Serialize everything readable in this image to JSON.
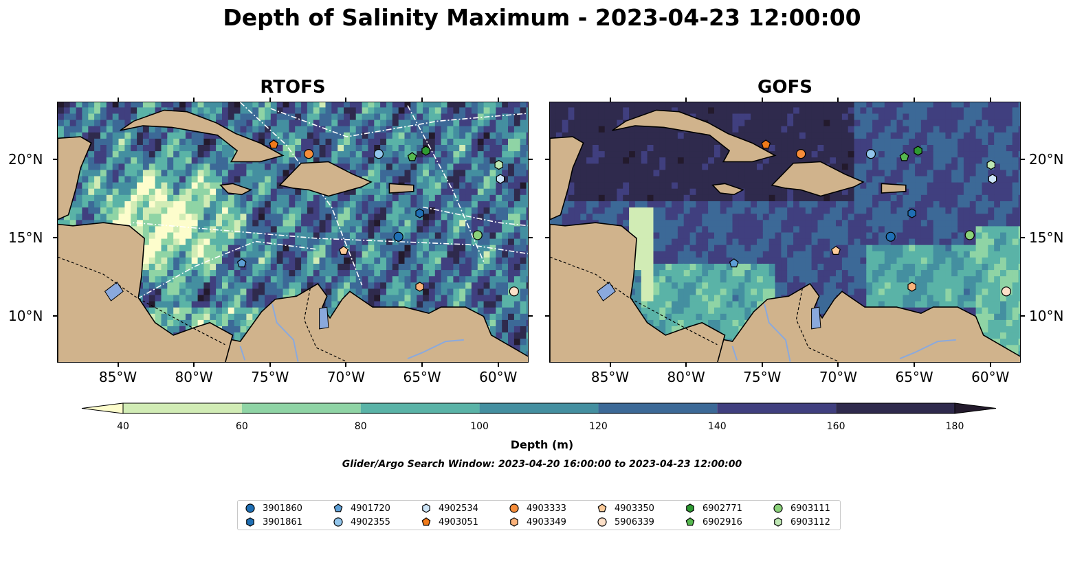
{
  "title": "Depth of Salinity Maximum - 2023-04-23 12:00:00",
  "chart_data": {
    "type": "heatmap",
    "panels": [
      {
        "title": "RTOFS"
      },
      {
        "title": "GOFS"
      }
    ],
    "x_ticks": [
      "85°W",
      "80°W",
      "75°W",
      "70°W",
      "65°W",
      "60°W"
    ],
    "x_tick_values": [
      -85,
      -80,
      -75,
      -70,
      -65,
      -60
    ],
    "y_ticks": [
      "10°N",
      "15°N",
      "20°N"
    ],
    "y_tick_values": [
      10,
      15,
      20
    ],
    "xlim": [
      -89,
      -58
    ],
    "ylim": [
      7,
      23.7
    ],
    "colorbar": {
      "label": "Depth (m)",
      "ticks": [
        "40",
        "60",
        "80",
        "100",
        "120",
        "140",
        "160",
        "180"
      ],
      "levels": [
        40,
        60,
        80,
        100,
        120,
        140,
        160,
        180
      ],
      "colors": [
        "#fdfdcc",
        "#d1ecb5",
        "#8fd4a5",
        "#5ab3a7",
        "#448fa0",
        "#3c6997",
        "#403f7f",
        "#2f2a4d",
        "#231a2c"
      ],
      "extend": "both"
    },
    "search_window": "Glider/Argo Search Window: 2023-04-20 16:00:00 to 2023-04-23 12:00:00",
    "floats": [
      {
        "id": "3901860",
        "color": "#1f6fb4",
        "marker": "circle",
        "lon": -66.6,
        "lat": 15.1
      },
      {
        "id": "3901861",
        "color": "#1f6fb4",
        "marker": "hexagon",
        "lon": -65.2,
        "lat": 16.6
      },
      {
        "id": "4901720",
        "color": "#5d9fd6",
        "marker": "pentagon",
        "lon": -76.9,
        "lat": 13.4
      },
      {
        "id": "4902355",
        "color": "#92c5eb",
        "marker": "circle",
        "lon": -67.9,
        "lat": 20.4
      },
      {
        "id": "4902534",
        "color": "#cce4f7",
        "marker": "hexagon",
        "lon": -59.9,
        "lat": 18.8
      },
      {
        "id": "4903051",
        "color": "#f07a1a",
        "marker": "pentagon",
        "lon": -74.8,
        "lat": 21.0
      },
      {
        "id": "4903333",
        "color": "#f68d3a",
        "marker": "circle",
        "lon": -72.5,
        "lat": 20.4
      },
      {
        "id": "4903349",
        "color": "#fbb27a",
        "marker": "hexagon",
        "lon": -65.2,
        "lat": 11.9
      },
      {
        "id": "4903350",
        "color": "#fccb9a",
        "marker": "pentagon",
        "lon": -70.2,
        "lat": 14.2
      },
      {
        "id": "5906339",
        "color": "#fde0c8",
        "marker": "circle",
        "lon": -59.0,
        "lat": 11.6
      },
      {
        "id": "6902771",
        "color": "#2e9a32",
        "marker": "hexagon",
        "lon": -64.8,
        "lat": 20.6
      },
      {
        "id": "6902916",
        "color": "#56b84f",
        "marker": "pentagon",
        "lon": -65.7,
        "lat": 20.2
      },
      {
        "id": "6903111",
        "color": "#8bd27a",
        "marker": "circle",
        "lon": -61.4,
        "lat": 15.2
      },
      {
        "id": "6903112",
        "color": "#bfe8b4",
        "marker": "hexagon",
        "lon": -60.0,
        "lat": 19.7
      }
    ]
  }
}
